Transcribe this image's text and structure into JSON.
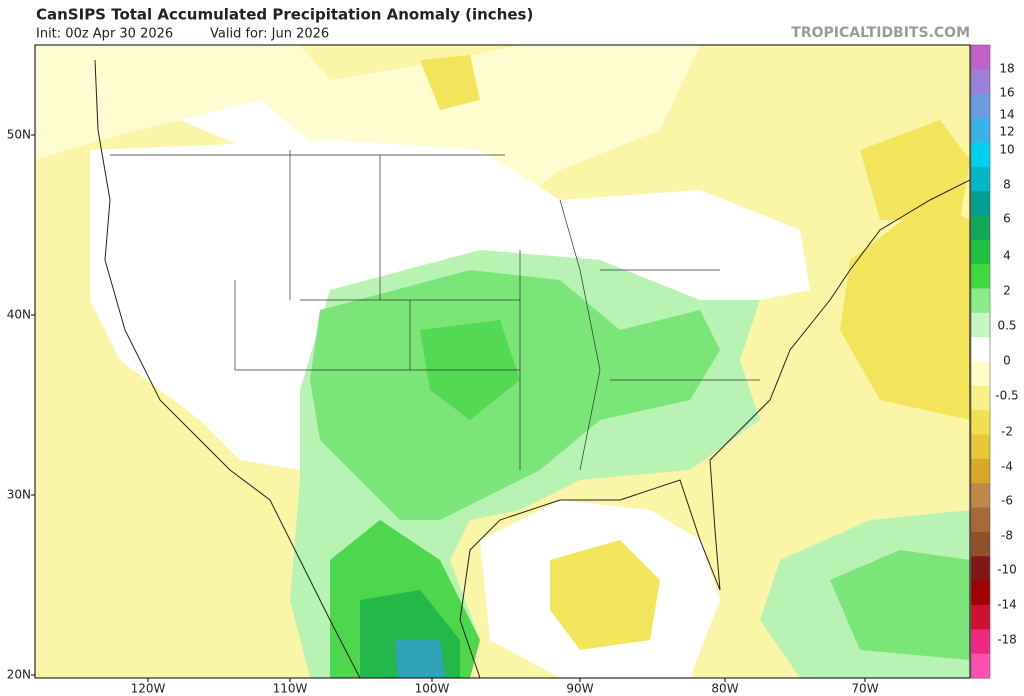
{
  "header": {
    "title": "CanSIPS Total Accumulated Precipitation Anomaly (inches)",
    "init": "Init: 00z Apr 30 2026",
    "valid": "Valid for: Jun 2026",
    "credit": "TROPICALTIDBITS.COM"
  },
  "map": {
    "latitude_labels": [
      "50N",
      "40N",
      "30N",
      "20N"
    ],
    "longitude_labels": [
      "120W",
      "110W",
      "100W",
      "90W",
      "80W",
      "70W"
    ]
  },
  "colorbar": {
    "labels": [
      18,
      16,
      14,
      12,
      10,
      8,
      6,
      4,
      2,
      0.5,
      0,
      -0.5,
      -2,
      -4,
      -6,
      -8,
      -10,
      -14,
      -18
    ]
  }
}
